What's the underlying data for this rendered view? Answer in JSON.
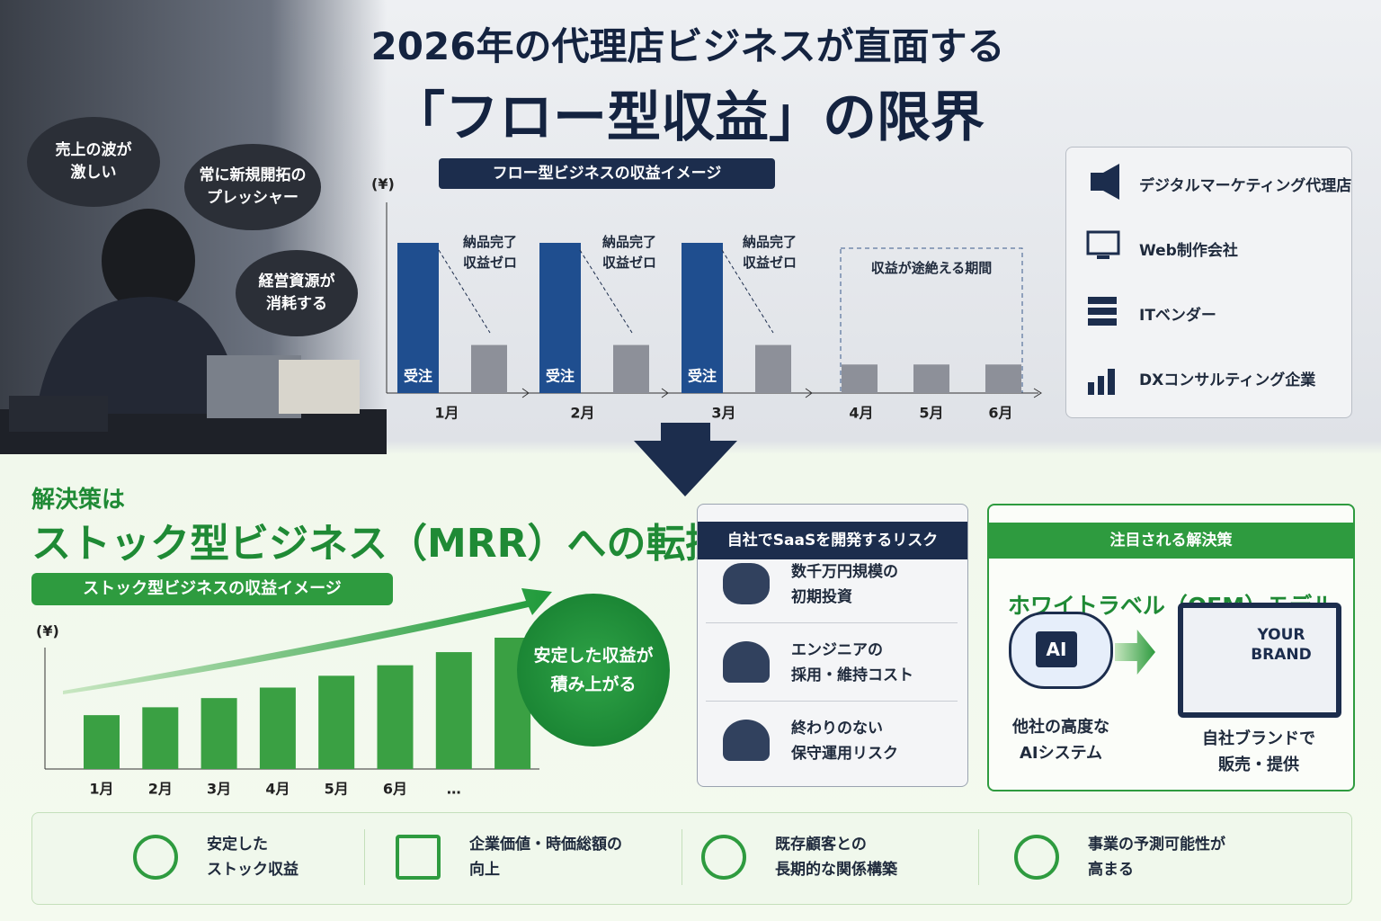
{
  "header": {
    "title_line1": "2026年の代理店ビジネスが直面する",
    "title_line2": "「フロー型収益」の限界"
  },
  "bubbles": [
    "売上の波が\n激しい",
    "常に新規開拓の\nプレッシャー",
    "経営資源が\n消耗する"
  ],
  "flow_chart": {
    "type": "bar",
    "title": "フロー型ビジネスの収益イメージ",
    "y_label": "(¥)",
    "categories": [
      "1月",
      "2月",
      "3月",
      "4月",
      "5月",
      "6月"
    ],
    "series": [
      {
        "name": "受注",
        "color": "#1f4e8f",
        "values": [
          100,
          100,
          100,
          null,
          null,
          null
        ]
      },
      {
        "color": "#8d9099",
        "values": [
          32,
          32,
          32,
          19,
          19,
          19
        ]
      }
    ],
    "ylim": [
      0,
      100
    ],
    "annotations": [
      "納品完了\n収益ゼロ",
      "納品完了\n収益ゼロ",
      "納品完了\n収益ゼロ",
      "収益が途絶える期間"
    ]
  },
  "agency_types": [
    "デジタルマーケティング代理店",
    "Web制作会社",
    "ITベンダー",
    "DXコンサルティング企業"
  ],
  "solution": {
    "lead": "解決策は",
    "headline": "ストック型ビジネス（MRR）への転換"
  },
  "stock_chart": {
    "type": "bar",
    "title": "ストック型ビジネスの収益イメージ",
    "y_label": "(¥)",
    "categories": [
      "1月",
      "2月",
      "3月",
      "4月",
      "5月",
      "6月",
      "…",
      null
    ],
    "values": [
      41,
      47,
      54,
      62,
      71,
      79,
      89,
      100
    ],
    "color": "#3aa043",
    "ylim": [
      0,
      100
    ],
    "annotation": "安定した収益が\n積み上がる"
  },
  "risk_panel": {
    "title": "自社でSaaSを開発するリスク",
    "items": [
      "数千万円規模の\n初期投資",
      "エンジニアの\n採用・維持コスト",
      "終わりのない\n保守運用リスク"
    ]
  },
  "oem_panel": {
    "title": "注目される解決策",
    "model": "ホワイトラベル（OEM）モデル",
    "ai_icon": "AI",
    "screen": "YOUR\nBRAND",
    "left_caption": "他社の高度な\nAIシステム",
    "right_caption": "自社ブランドで\n販売・提供"
  },
  "benefits": [
    "安定した\nストック収益",
    "企業価値・時価総額の\n向上",
    "既存顧客との\n長期的な関係構築",
    "事業の予測可能性が\n高まる"
  ]
}
